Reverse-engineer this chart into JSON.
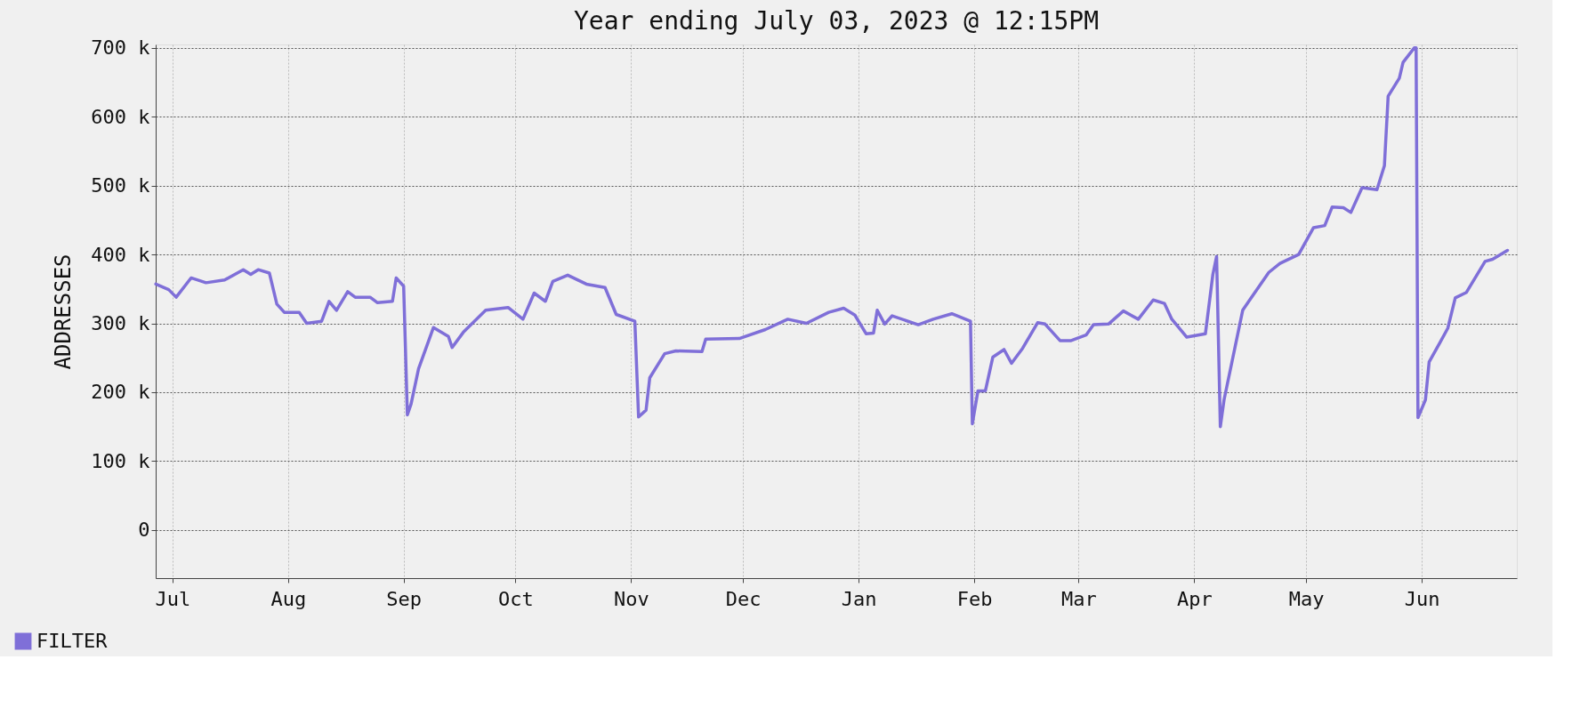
{
  "chart_data": {
    "type": "line",
    "title": "Year ending July 03, 2023 @ 12:15PM",
    "ylabel": "ADDRESSES",
    "xlim": [
      "2022-07-03T12:15",
      "2023-07-03T12:15"
    ],
    "xticks": [
      {
        "value": "2022-07-08",
        "label": "Jul"
      },
      {
        "value": "2022-08-08",
        "label": "Aug"
      },
      {
        "value": "2022-09-08",
        "label": "Sep"
      },
      {
        "value": "2022-10-08",
        "label": "Oct"
      },
      {
        "value": "2022-11-08",
        "label": "Nov"
      },
      {
        "value": "2022-12-08",
        "label": "Dec"
      },
      {
        "value": "2023-01-08",
        "label": "Jan"
      },
      {
        "value": "2023-02-08",
        "label": "Feb"
      },
      {
        "value": "2023-03-08",
        "label": "Mar"
      },
      {
        "value": "2023-04-08",
        "label": "Apr"
      },
      {
        "value": "2023-05-08",
        "label": "May"
      },
      {
        "value": "2023-06-08",
        "label": "Jun"
      }
    ],
    "ylim": [
      -70000,
      705000
    ],
    "yticks": [
      0,
      {
        "value": 100000,
        "label": "100 k"
      },
      {
        "value": 200000,
        "label": "200 k"
      },
      {
        "value": 300000,
        "label": "300 k"
      },
      {
        "value": 400000,
        "label": "400 k"
      },
      {
        "value": 500000,
        "label": "500 k"
      },
      {
        "value": 600000,
        "label": "600 k"
      },
      {
        "value": 700000,
        "label": "700 k"
      }
    ],
    "grid": true,
    "legend": "bottom left",
    "line_style": "solid",
    "marker": "none",
    "series": [
      {
        "name": "FILTER",
        "color": "#7f6fd8",
        "x": [
          "2022-07-03T13:00",
          "2022-07-07",
          "2022-07-09",
          "2022-07-13",
          "2022-07-17",
          "2022-07-22",
          "2022-07-27",
          "2022-07-29",
          "2022-07-31",
          "2022-08-03",
          "2022-08-05",
          "2022-08-07",
          "2022-08-11",
          "2022-08-13",
          "2022-08-17",
          "2022-08-19",
          "2022-08-21",
          "2022-08-24",
          "2022-08-26",
          "2022-08-30",
          "2022-09-01",
          "2022-09-05",
          "2022-09-06",
          "2022-09-08",
          "2022-09-09",
          "2022-09-10",
          "2022-09-12",
          "2022-09-16",
          "2022-09-20",
          "2022-09-21",
          "2022-09-24",
          "2022-09-30",
          "2022-10-06",
          "2022-10-10",
          "2022-10-13",
          "2022-10-16",
          "2022-10-18",
          "2022-10-22",
          "2022-10-27",
          "2022-11-01",
          "2022-11-04",
          "2022-11-09",
          "2022-11-10",
          "2022-11-12",
          "2022-11-13",
          "2022-11-17",
          "2022-11-20",
          "2022-11-27",
          "2022-11-28",
          "2022-12-07",
          "2022-12-14",
          "2022-12-20",
          "2022-12-25",
          "2022-12-31",
          "2023-01-04",
          "2023-01-07",
          "2023-01-10",
          "2023-01-12",
          "2023-01-13",
          "2023-01-15",
          "2023-01-17",
          "2023-01-24",
          "2023-01-28",
          "2023-02-02",
          "2023-02-07",
          "2023-02-07T12:00",
          "2023-02-09",
          "2023-02-11",
          "2023-02-13",
          "2023-02-16",
          "2023-02-18",
          "2023-02-21",
          "2023-02-25",
          "2023-02-27",
          "2023-03-03",
          "2023-03-06",
          "2023-03-10",
          "2023-03-12",
          "2023-03-16",
          "2023-03-20",
          "2023-03-24",
          "2023-03-28",
          "2023-03-31",
          "2023-04-02",
          "2023-04-06",
          "2023-04-11",
          "2023-04-13",
          "2023-04-14",
          "2023-04-15",
          "2023-04-16",
          "2023-04-19",
          "2023-04-21",
          "2023-04-23",
          "2023-04-28",
          "2023-05-01",
          "2023-05-06",
          "2023-05-10",
          "2023-05-13",
          "2023-05-15",
          "2023-05-18",
          "2023-05-20",
          "2023-05-23",
          "2023-05-27",
          "2023-05-29",
          "2023-05-30",
          "2023-06-02",
          "2023-06-03",
          "2023-06-06",
          "2023-06-06T12:00",
          "2023-06-07",
          "2023-06-09",
          "2023-06-10",
          "2023-06-13",
          "2023-06-15",
          "2023-06-17",
          "2023-06-20",
          "2023-06-25",
          "2023-06-27",
          "2023-07-01"
        ],
        "values": [
          357000,
          349000,
          338000,
          366000,
          359000,
          363000,
          378000,
          371000,
          378000,
          373000,
          328000,
          316000,
          316000,
          300000,
          303000,
          332000,
          319000,
          346000,
          338000,
          338000,
          330000,
          332000,
          366000,
          354000,
          167000,
          183000,
          234000,
          294000,
          281000,
          265000,
          287000,
          319000,
          323000,
          306000,
          344000,
          332000,
          361000,
          370000,
          357000,
          352000,
          313000,
          303000,
          164000,
          174000,
          221000,
          256000,
          260000,
          259000,
          277000,
          278000,
          291000,
          306000,
          300000,
          316000,
          322000,
          312000,
          285000,
          286000,
          319000,
          299000,
          311000,
          298000,
          306000,
          314000,
          303000,
          154000,
          202000,
          202000,
          251000,
          262000,
          242000,
          264000,
          301000,
          299000,
          275000,
          275000,
          283000,
          298000,
          299000,
          318000,
          306000,
          334000,
          329000,
          306000,
          280000,
          285000,
          371000,
          397000,
          150000,
          189000,
          267000,
          319000,
          335000,
          374000,
          387000,
          400000,
          439000,
          442000,
          469000,
          468000,
          461000,
          497000,
          494000,
          529000,
          630000,
          656000,
          679000,
          700000,
          700000,
          163000,
          189000,
          244000,
          273000,
          293000,
          337000,
          345000,
          390000,
          393000,
          406000
        ]
      }
    ]
  }
}
